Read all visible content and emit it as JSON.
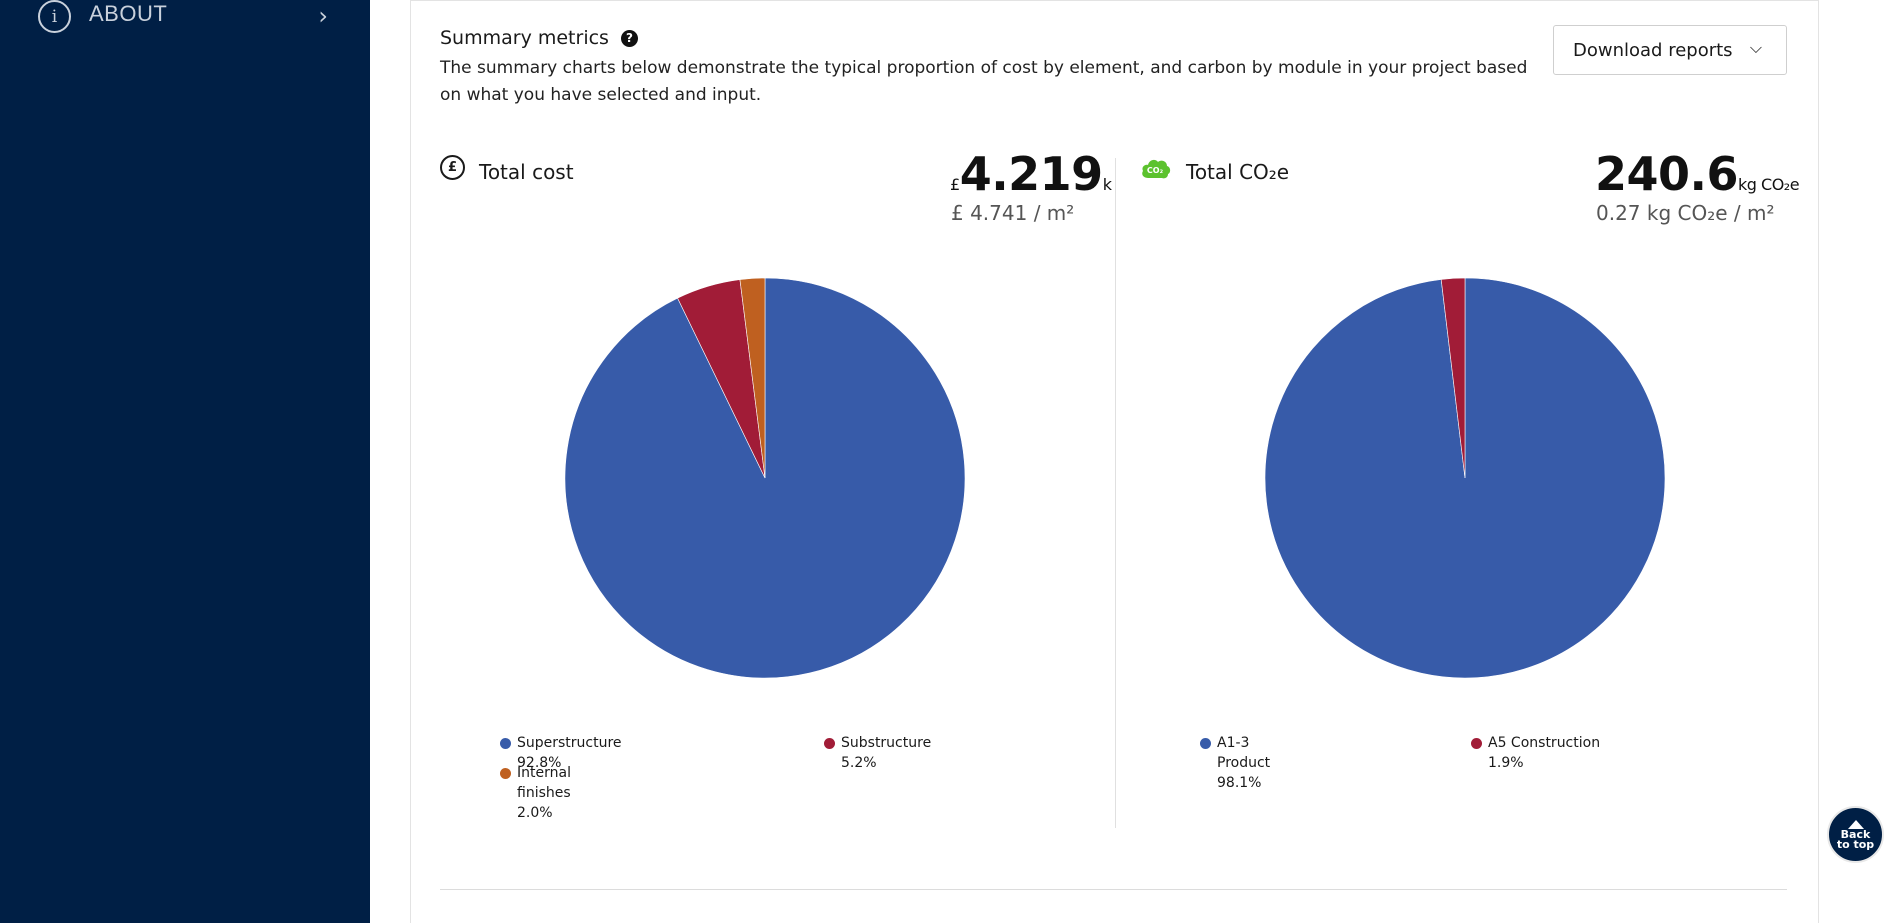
{
  "sidebar": {
    "about_label": "ABOUT",
    "background": "#001f45"
  },
  "summary": {
    "title": "Summary metrics",
    "help_icon": "?",
    "description": "The summary charts below demonstrate the typical proportion of cost by element, and carbon by module in your project based on what you have selected and input."
  },
  "download": {
    "label": "Download reports"
  },
  "cost": {
    "label": "Total cost",
    "icon_glyph": "£",
    "prefix": "£",
    "value": "4.219",
    "suffix": "k",
    "per_area": "£ 4.741 / m²"
  },
  "carbon": {
    "label": "Total CO₂e",
    "icon_glyph": "CO₂",
    "value": "240.6",
    "suffix": "kg CO₂e",
    "per_area": "0.27 kg CO₂e / m²"
  },
  "back_to_top": {
    "line1": "Back",
    "line2": "to top"
  },
  "chart_data": [
    {
      "type": "pie",
      "title": "Total cost",
      "series": [
        {
          "name": "Superstructure",
          "value": 92.8,
          "label": "Superstructure 92.8%",
          "color": "#375ba9"
        },
        {
          "name": "Substructure",
          "value": 5.2,
          "label": "Substructure 5.2%",
          "color": "#a11c37"
        },
        {
          "name": "Internal finishes",
          "value": 2.0,
          "label": "Internal finishes 2.0%",
          "color": "#bf6020"
        }
      ],
      "legend": "bottom"
    },
    {
      "type": "pie",
      "title": "Total CO₂e",
      "series": [
        {
          "name": "A1-3 Product",
          "value": 98.1,
          "label": "A1-3 Product 98.1%",
          "color": "#375ba9"
        },
        {
          "name": "A5 Construction",
          "value": 1.9,
          "label": "A5 Construction",
          "label2": "1.9%",
          "color": "#a11c37"
        }
      ],
      "legend": "bottom"
    }
  ]
}
